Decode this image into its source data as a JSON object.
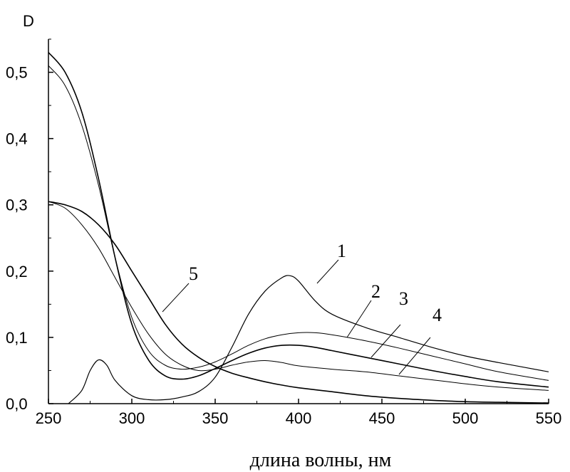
{
  "chart_data": {
    "type": "line",
    "ylabel": "D",
    "xlabel": "длина волны, нм",
    "xlim": [
      250,
      550
    ],
    "ylim": [
      0.0,
      0.55
    ],
    "x_ticks": [
      "250",
      "300",
      "350",
      "400",
      "450",
      "500",
      "550"
    ],
    "y_ticks": [
      "0,0",
      "0,1",
      "0,2",
      "0,3",
      "0,4",
      "0,5"
    ],
    "series": [
      {
        "name": "1",
        "x": [
          262,
          270,
          275,
          280,
          285,
          290,
          300,
          310,
          320,
          330,
          340,
          350,
          360,
          370,
          380,
          390,
          395,
          400,
          410,
          420,
          440,
          460,
          480,
          500,
          520,
          550
        ],
        "y": [
          0.0,
          0.02,
          0.05,
          0.066,
          0.058,
          0.035,
          0.012,
          0.006,
          0.006,
          0.01,
          0.018,
          0.04,
          0.085,
          0.135,
          0.17,
          0.19,
          0.193,
          0.185,
          0.155,
          0.135,
          0.115,
          0.1,
          0.085,
          0.072,
          0.062,
          0.048
        ]
      },
      {
        "name": "2",
        "x": [
          250,
          260,
          270,
          280,
          290,
          300,
          310,
          320,
          330,
          340,
          350,
          360,
          370,
          380,
          390,
          400,
          410,
          420,
          440,
          460,
          480,
          500,
          520,
          550
        ],
        "y": [
          0.51,
          0.48,
          0.42,
          0.33,
          0.22,
          0.13,
          0.08,
          0.058,
          0.052,
          0.055,
          0.063,
          0.075,
          0.088,
          0.098,
          0.104,
          0.107,
          0.107,
          0.104,
          0.095,
          0.084,
          0.072,
          0.06,
          0.048,
          0.035
        ]
      },
      {
        "name": "3",
        "x": [
          250,
          260,
          270,
          280,
          290,
          300,
          310,
          320,
          330,
          340,
          350,
          360,
          370,
          380,
          390,
          400,
          410,
          420,
          440,
          460,
          480,
          500,
          520,
          550
        ],
        "y": [
          0.53,
          0.5,
          0.44,
          0.34,
          0.22,
          0.12,
          0.066,
          0.042,
          0.037,
          0.042,
          0.053,
          0.065,
          0.076,
          0.084,
          0.088,
          0.088,
          0.085,
          0.08,
          0.07,
          0.06,
          0.05,
          0.041,
          0.033,
          0.025
        ]
      },
      {
        "name": "4",
        "x": [
          250,
          260,
          270,
          280,
          290,
          300,
          310,
          320,
          330,
          340,
          350,
          360,
          370,
          380,
          390,
          400,
          420,
          440,
          460,
          480,
          500,
          520,
          550
        ],
        "y": [
          0.305,
          0.295,
          0.27,
          0.235,
          0.19,
          0.145,
          0.105,
          0.075,
          0.058,
          0.05,
          0.052,
          0.058,
          0.063,
          0.065,
          0.062,
          0.057,
          0.052,
          0.048,
          0.042,
          0.036,
          0.03,
          0.025,
          0.02
        ]
      },
      {
        "name": "5",
        "x": [
          250,
          260,
          270,
          280,
          290,
          300,
          310,
          320,
          330,
          340,
          350,
          360,
          370,
          380,
          390,
          400,
          420,
          440,
          460,
          480,
          500,
          520,
          550
        ],
        "y": [
          0.305,
          0.3,
          0.29,
          0.27,
          0.24,
          0.2,
          0.16,
          0.12,
          0.09,
          0.07,
          0.056,
          0.046,
          0.039,
          0.033,
          0.028,
          0.024,
          0.018,
          0.012,
          0.008,
          0.005,
          0.003,
          0.002,
          0.001
        ]
      }
    ]
  }
}
